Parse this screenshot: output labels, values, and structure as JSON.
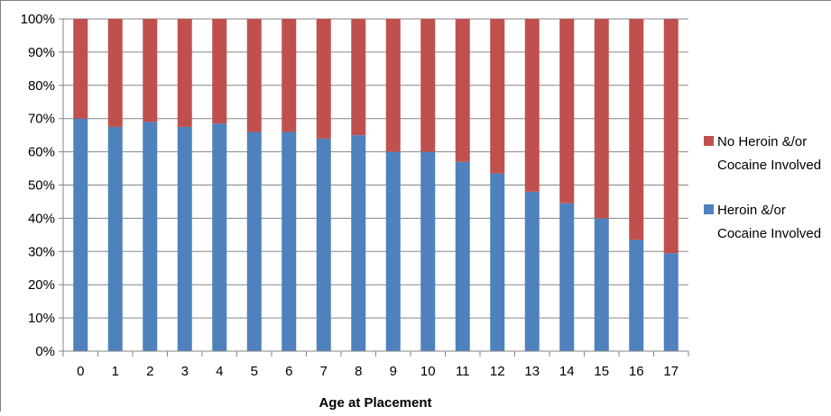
{
  "chart_data": {
    "type": "bar",
    "stacked": true,
    "percent_stacked": true,
    "xlabel": "Age at Placement",
    "ylabel": "",
    "ylim": [
      0,
      100
    ],
    "y_ticks": [
      "0%",
      "10%",
      "20%",
      "30%",
      "40%",
      "50%",
      "60%",
      "70%",
      "80%",
      "90%",
      "100%"
    ],
    "grid": true,
    "legend_position": "right",
    "categories": [
      "0",
      "1",
      "2",
      "3",
      "4",
      "5",
      "6",
      "7",
      "8",
      "9",
      "10",
      "11",
      "12",
      "13",
      "14",
      "15",
      "16",
      "17"
    ],
    "series": [
      {
        "name": "Heroin &/or Cocaine Involved",
        "legend_lines": [
          "Heroin &/or",
          "Cocaine Involved"
        ],
        "color": "#4f81bd",
        "values": [
          70,
          67.5,
          69,
          67.5,
          68.5,
          66,
          66,
          64,
          65,
          60,
          60,
          57,
          53.5,
          48,
          44.5,
          40,
          33.5,
          29.5
        ]
      },
      {
        "name": "No Heroin &/or Cocaine Involved",
        "legend_lines": [
          "No Heroin &/or",
          "Cocaine Involved"
        ],
        "color": "#c0504d",
        "values": [
          30,
          32.5,
          31,
          32.5,
          31.5,
          34,
          34,
          36,
          35,
          40,
          40,
          43,
          46.5,
          52,
          55.5,
          60,
          66.5,
          70.5
        ]
      }
    ]
  }
}
